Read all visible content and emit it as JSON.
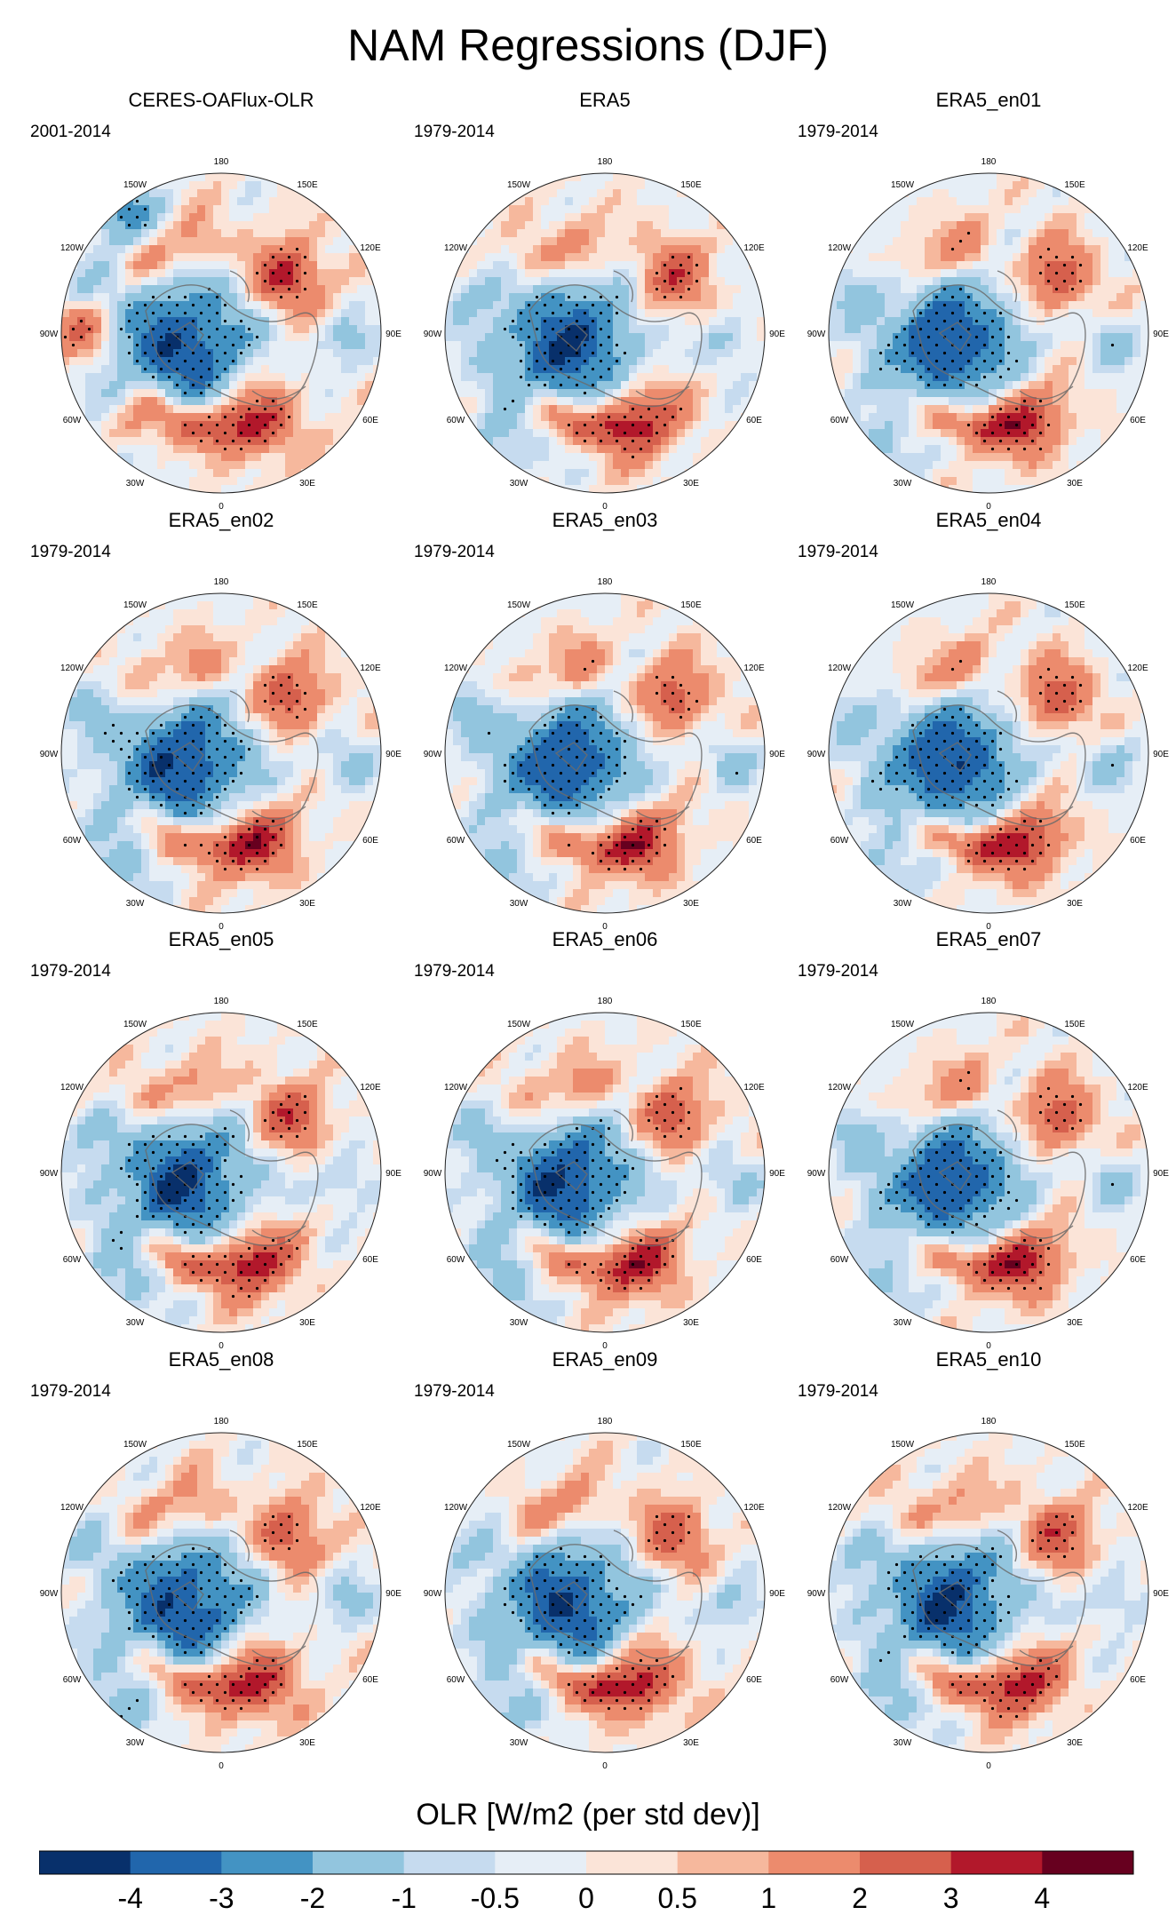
{
  "title": "NAM Regressions (DJF)",
  "chart_data": {
    "type": "polar-map",
    "projection": "north-polar-stereographic",
    "variable": "OLR",
    "units": "W/m2 (per std dev)",
    "panels": [
      {
        "title": "CERES-OAFlux-OLR",
        "period": "2001-2014"
      },
      {
        "title": "ERA5",
        "period": "1979-2014"
      },
      {
        "title": "ERA5_en01",
        "period": "1979-2014"
      },
      {
        "title": "ERA5_en02",
        "period": "1979-2014"
      },
      {
        "title": "ERA5_en03",
        "period": "1979-2014"
      },
      {
        "title": "ERA5_en04",
        "period": "1979-2014"
      },
      {
        "title": "ERA5_en05",
        "period": "1979-2014"
      },
      {
        "title": "ERA5_en06",
        "period": "1979-2014"
      },
      {
        "title": "ERA5_en07",
        "period": "1979-2014"
      },
      {
        "title": "ERA5_en08",
        "period": "1979-2014"
      },
      {
        "title": "ERA5_en09",
        "period": "1979-2014"
      },
      {
        "title": "ERA5_en10",
        "period": "1979-2014"
      }
    ],
    "longitude_labels": [
      "180",
      "150E",
      "120E",
      "90E",
      "60E",
      "30E",
      "0",
      "30W",
      "60W",
      "90W",
      "120W",
      "150W"
    ],
    "colorbar": {
      "title": "OLR [W/m2 (per std dev)]",
      "ticks": [
        "-4",
        "-3",
        "-2",
        "-1",
        "-0.5",
        "0",
        "0.5",
        "1",
        "2",
        "3",
        "4"
      ],
      "colors": [
        "#08306b",
        "#2166ac",
        "#4393c3",
        "#92c5de",
        "#c6dbef",
        "#e6eef6",
        "#fbe4d8",
        "#f6b89d",
        "#ec8b6d",
        "#d6604d",
        "#b2182b",
        "#67001f"
      ]
    },
    "anomaly_pattern": {
      "arctic_center": "negative",
      "atlantic_europe_band": "positive",
      "east_asia_pacific": "positive",
      "stippling": "significant regions"
    }
  }
}
